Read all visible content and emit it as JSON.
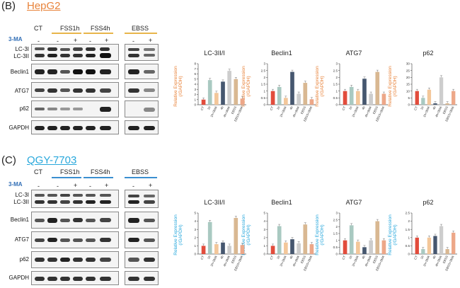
{
  "panels": [
    {
      "id": "B",
      "label": "(B)",
      "title": "HepG2",
      "accent": "#e8833a",
      "header_labels": [
        "CT",
        "FSS1h",
        "FSS4h",
        "EBSS"
      ],
      "three_ma_label": "3-MA",
      "signs": [
        "-",
        "-",
        "+",
        "-",
        "+",
        "-",
        "+"
      ],
      "blot_labels": [
        "LC-3I\nLC-3II",
        "Beclin1",
        "ATG7",
        "p62",
        "GAPDH"
      ],
      "ylabel": "Relative Expression\n(/GAPDH)",
      "graphs": [
        {
          "title": "LC-3II/I",
          "ymax": 8,
          "ticks": [
            0,
            1,
            2,
            3,
            4,
            5,
            6,
            7,
            8
          ],
          "values": [
            1.0,
            4.8,
            2.3,
            4.5,
            6.6,
            5.0,
            1.2
          ]
        },
        {
          "title": "Beclin1",
          "ymax": 3,
          "ticks": [
            0,
            0.5,
            1,
            1.5,
            2,
            2.5,
            3
          ],
          "values": [
            1.0,
            1.3,
            0.5,
            2.4,
            0.8,
            1.6,
            0.4
          ]
        },
        {
          "title": "ATG7",
          "ymax": 3,
          "ticks": [
            0,
            0.5,
            1,
            1.5,
            2,
            2.5,
            3
          ],
          "values": [
            1.0,
            1.3,
            1.0,
            1.9,
            0.8,
            2.4,
            0.8
          ]
        },
        {
          "title": "p62",
          "ymax": 30,
          "ticks": [
            0,
            5,
            10,
            15,
            20,
            25,
            30
          ],
          "values": [
            10.0,
            5.0,
            11.0,
            1.0,
            20.0,
            1.0,
            10.0
          ]
        }
      ]
    },
    {
      "id": "C",
      "label": "(C)",
      "title": "QGY-7703",
      "accent": "#29a8dc",
      "header_labels": [
        "CT",
        "FSS1h",
        "FSS4h",
        "EBSS"
      ],
      "three_ma_label": "3-MA",
      "signs": [
        "-",
        "-",
        "+",
        "-",
        "+",
        "-",
        "+"
      ],
      "blot_labels": [
        "LC-3I\nLC-3II",
        "Beclin1",
        "ATG7",
        "p62",
        "GAPDH"
      ],
      "ylabel": "Relative Expression\n(/GAPDH)",
      "graphs": [
        {
          "title": "LC-3II/I",
          "ymax": 5,
          "ticks": [
            0,
            1,
            2,
            3,
            4,
            5
          ],
          "values": [
            1.0,
            3.9,
            1.2,
            1.4,
            1.0,
            4.4,
            1.1
          ]
        },
        {
          "title": "Beclin1",
          "ymax": 5,
          "ticks": [
            0,
            1,
            2,
            3,
            4,
            5
          ],
          "values": [
            1.0,
            3.4,
            1.4,
            1.8,
            1.3,
            3.6,
            1.2
          ]
        },
        {
          "title": "ATG7",
          "ymax": 3,
          "ticks": [
            0,
            0.5,
            1,
            1.5,
            2,
            2.5,
            3
          ],
          "values": [
            1.0,
            2.1,
            0.9,
            0.5,
            1.0,
            2.4,
            1.0
          ]
        },
        {
          "title": "p62",
          "ymax": 2.5,
          "ticks": [
            0,
            0.5,
            1,
            1.5,
            2,
            2.5
          ],
          "values": [
            1.0,
            0.3,
            1.0,
            1.1,
            1.7,
            0.3,
            1.3
          ]
        }
      ]
    }
  ],
  "x_categories": [
    "CT",
    "1h",
    "1h+3MA",
    "4h",
    "4h+3MA",
    "EBSS",
    "EBSS+3MA"
  ],
  "bar_colors": [
    "#e24c3c",
    "#a9c9c1",
    "#f3c79a",
    "#46576f",
    "#cdcdcd",
    "#d9b892",
    "#eda788"
  ]
}
